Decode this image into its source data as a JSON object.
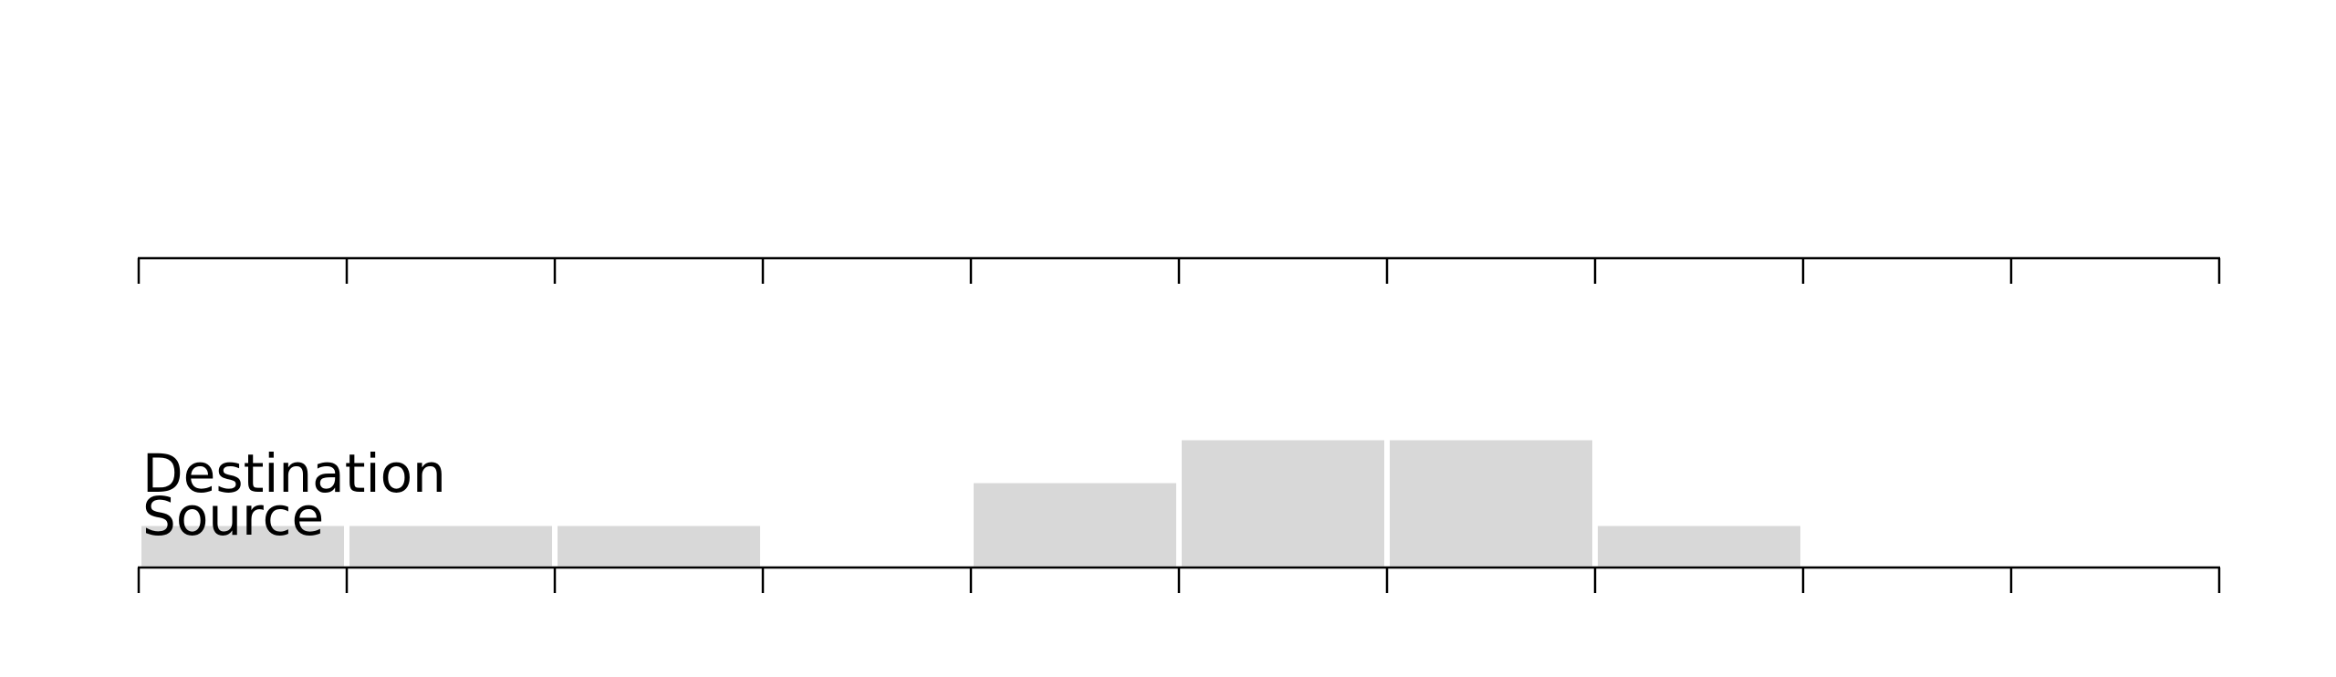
{
  "chart_data": {
    "type": "bar",
    "title": "",
    "xlabel": "",
    "ylabel": "",
    "bin_count": 10,
    "values": [
      1,
      1,
      1,
      0,
      2,
      3,
      3,
      1,
      0,
      0
    ],
    "ylim": [
      0,
      3
    ],
    "grid": false,
    "axes": [
      {
        "name": "destination-axis",
        "label": "Destination"
      },
      {
        "name": "source-axis",
        "label": "Source"
      }
    ],
    "colors": {
      "bar": "#d8d8d8",
      "bar_border": "#ffffff",
      "axis": "#000000",
      "text": "#000000"
    }
  }
}
